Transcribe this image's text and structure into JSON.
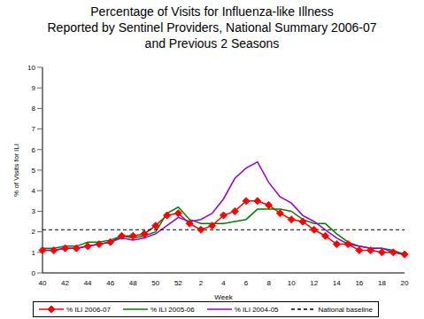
{
  "chart_data": {
    "type": "line",
    "title": "Percentage of Visits for Influenza-like Illness\nReported by Sentinel Providers, National Summary 2006-07\nand Previous 2 Seasons",
    "x_label": "Week",
    "y_label": "% of Visits for ILI",
    "categories": [
      40,
      null,
      42,
      null,
      44,
      null,
      46,
      null,
      48,
      null,
      50,
      null,
      52,
      null,
      2,
      null,
      4,
      null,
      6,
      null,
      8,
      null,
      10,
      null,
      12,
      null,
      14,
      null,
      16,
      null,
      18,
      null,
      20
    ],
    "ylim": [
      0,
      10
    ],
    "yticks": [
      0,
      1,
      2,
      3,
      4,
      5,
      6,
      7,
      8,
      9,
      10
    ],
    "grid": false,
    "legend": "bottom",
    "series": [
      {
        "name": "% ILI 2006-07",
        "color": "#ff0000",
        "marker": "diamond",
        "line_style": "solid",
        "values": [
          1.1,
          1.1,
          1.2,
          1.2,
          1.3,
          1.4,
          1.5,
          1.8,
          1.8,
          1.9,
          2.3,
          2.8,
          2.9,
          2.4,
          2.1,
          2.3,
          2.8,
          3.0,
          3.5,
          3.5,
          3.3,
          2.9,
          2.6,
          2.5,
          2.1,
          1.8,
          1.4,
          1.4,
          1.1,
          1.1,
          1.0,
          1.0,
          0.9
        ]
      },
      {
        "name": "% ILI 2005-06",
        "color": "#008000",
        "marker": "none",
        "line_style": "solid",
        "values": [
          1.2,
          1.2,
          1.3,
          1.3,
          1.5,
          1.5,
          1.6,
          1.8,
          1.7,
          1.8,
          2.0,
          2.9,
          3.2,
          2.6,
          2.4,
          2.4,
          2.4,
          2.5,
          2.6,
          3.1,
          3.1,
          3.1,
          3.0,
          2.6,
          2.4,
          2.4,
          1.9,
          1.5,
          1.3,
          1.2,
          1.2,
          1.1,
          0.9
        ]
      },
      {
        "name": "% ILI 2004-05",
        "color": "#9900cc",
        "marker": "none",
        "line_style": "solid",
        "values": [
          1.1,
          1.1,
          1.2,
          1.2,
          1.3,
          1.4,
          1.5,
          1.7,
          1.6,
          1.7,
          1.9,
          2.3,
          2.7,
          2.5,
          2.6,
          2.9,
          3.6,
          4.6,
          5.1,
          5.4,
          4.4,
          3.7,
          3.4,
          2.8,
          2.5,
          2.1,
          1.7,
          1.4,
          1.3,
          1.2,
          1.2,
          1.0,
          0.9
        ]
      },
      {
        "name": "National baseline",
        "color": "#000000",
        "marker": "none",
        "line_style": "dashed",
        "values": [
          2.1,
          2.1,
          2.1,
          2.1,
          2.1,
          2.1,
          2.1,
          2.1,
          2.1,
          2.1,
          2.1,
          2.1,
          2.1,
          2.1,
          2.1,
          2.1,
          2.1,
          2.1,
          2.1,
          2.1,
          2.1,
          2.1,
          2.1,
          2.1,
          2.1,
          2.1,
          2.1,
          2.1,
          2.1,
          2.1,
          2.1,
          2.1,
          2.1
        ]
      }
    ]
  }
}
